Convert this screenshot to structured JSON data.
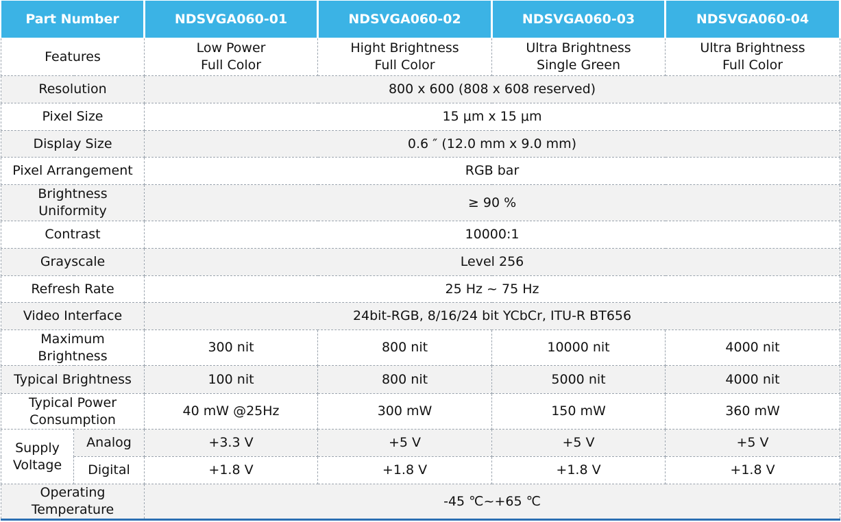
{
  "header": [
    "Part Number",
    "NDSVGA060-01",
    "NDSVGA060-02",
    "NDSVGA060-03",
    "NDSVGA060-04"
  ],
  "rows": [
    {
      "label": "Features",
      "values": [
        "Low Power\nFull Color",
        "Hight Brightness\nFull Color",
        "Ultra Brightness\nSingle Green",
        "Ultra Brightness\nFull Color"
      ]
    },
    {
      "label": "Resolution",
      "value": "800 x 600 (808 x 608 reserved)"
    },
    {
      "label": "Pixel Size",
      "value": "15 μm x 15 μm"
    },
    {
      "label": "Display Size",
      "value": "0.6 ″  (12.0 mm x 9.0 mm)"
    },
    {
      "label": "Pixel Arrangement",
      "value": "RGB bar"
    },
    {
      "label": "Brightness\nUniformity",
      "value": "≥ 90 %"
    },
    {
      "label": "Contrast",
      "value": "10000:1"
    },
    {
      "label": "Grayscale",
      "value": "Level 256"
    },
    {
      "label": "Refresh Rate",
      "value": "25 Hz ~ 75 Hz"
    },
    {
      "label": "Video Interface",
      "value": "24bit-RGB, 8/16/24 bit YCbCr, ITU-R BT656"
    },
    {
      "label": "Maximum\nBrightness",
      "values": [
        "300 nit",
        "800 nit",
        "10000 nit",
        "4000 nit"
      ]
    },
    {
      "label": "Typical Brightness",
      "values": [
        "100 nit",
        "800 nit",
        "5000 nit",
        "4000 nit"
      ]
    },
    {
      "label": "Typical Power\nConsumption",
      "values": [
        "40 mW @25Hz",
        "300 mW",
        "150 mW",
        "360 mW"
      ]
    },
    {
      "label": "Supply\nVoltage",
      "sub": [
        {
          "label": "Analog",
          "values": [
            "+3.3 V",
            "+5 V",
            "+5 V",
            "+5 V"
          ]
        },
        {
          "label": "Digital",
          "values": [
            "+1.8 V",
            "+1.8 V",
            "+1.8 V",
            "+1.8 V"
          ]
        }
      ]
    },
    {
      "label": "Operating\nTemperature",
      "value": "-45 ℃~+65 ℃"
    }
  ]
}
